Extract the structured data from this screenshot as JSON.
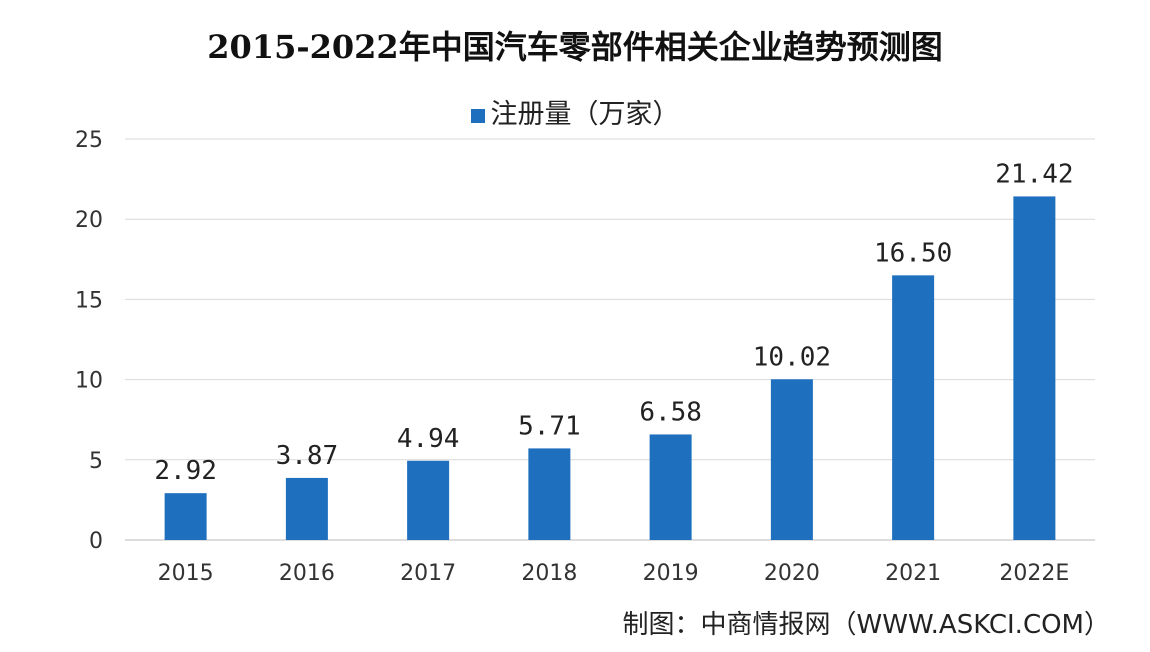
{
  "chart_data": {
    "type": "bar",
    "title": "2015-2022年中国汽车零部件相关企业趋势预测图",
    "categories": [
      "2015",
      "2016",
      "2017",
      "2018",
      "2019",
      "2020",
      "2021",
      "2022E"
    ],
    "series": [
      {
        "name": "注册量（万家）",
        "values": [
          2.92,
          3.87,
          4.94,
          5.71,
          6.58,
          10.02,
          16.5,
          21.42
        ]
      }
    ],
    "data_labels": [
      "2.92",
      "3.87",
      "4.94",
      "5.71",
      "6.58",
      "10.02",
      "16.50",
      "21.42"
    ],
    "yticks": [
      "0",
      "5",
      "10",
      "15",
      "20",
      "25"
    ],
    "ylim": [
      0,
      25
    ],
    "grid": true,
    "legend": "top",
    "bar_color": "#1f6fbf",
    "source": "制图：中商情报网（WWW.ASKCI.COM）"
  }
}
